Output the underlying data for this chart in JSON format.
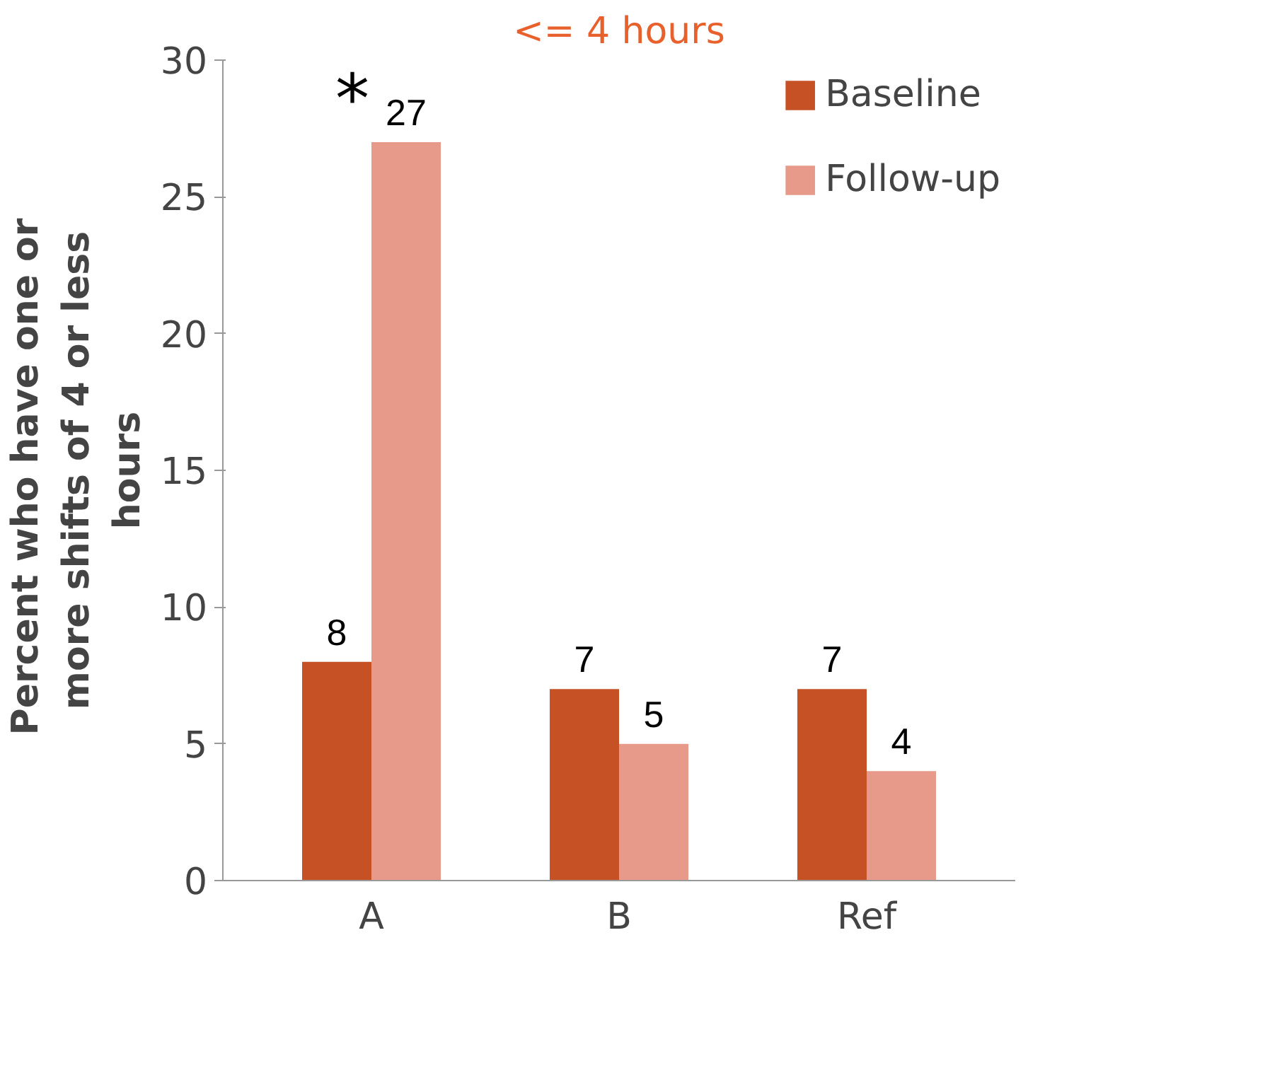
{
  "chart_data": {
    "type": "bar",
    "title": "<= 4 hours",
    "ylabel": "Percent who have  one or more shifts of 4 or less hours",
    "categories": [
      "A",
      "B",
      "Ref"
    ],
    "series": [
      {
        "name": "Baseline",
        "color": "#c55124",
        "values": [
          8,
          7,
          7
        ]
      },
      {
        "name": "Follow-up",
        "color": "#e79a8a",
        "values": [
          27,
          5,
          4
        ]
      }
    ],
    "ylim": [
      0,
      30
    ],
    "yticks": [
      0,
      5,
      10,
      15,
      20,
      25,
      30
    ],
    "data_labels": true,
    "grid": false,
    "legend": "top right",
    "annotations": [
      {
        "text": "*",
        "x": "A",
        "y": 27
      }
    ]
  }
}
